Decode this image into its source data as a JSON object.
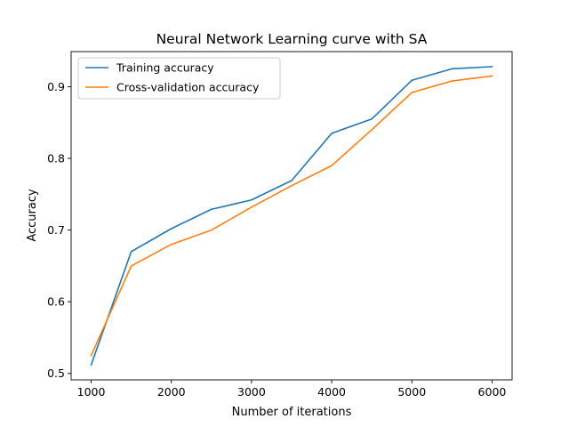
{
  "chart_data": {
    "type": "line",
    "title": "Neural Network Learning curve with SA",
    "xlabel": "Number of iterations",
    "ylabel": "Accuracy",
    "x": [
      1000,
      1500,
      2000,
      2500,
      3000,
      3500,
      4000,
      4500,
      5000,
      5500,
      6000
    ],
    "series": [
      {
        "name": "Training accuracy",
        "color": "#1f77b4",
        "values": [
          0.512,
          0.67,
          0.702,
          0.729,
          0.742,
          0.769,
          0.835,
          0.855,
          0.909,
          0.925,
          0.928
        ]
      },
      {
        "name": "Cross-validation accuracy",
        "color": "#ff7f0e",
        "values": [
          0.525,
          0.65,
          0.68,
          0.7,
          0.732,
          0.762,
          0.79,
          0.84,
          0.892,
          0.908,
          0.915
        ]
      }
    ],
    "xticks": [
      1000,
      2000,
      3000,
      4000,
      5000,
      6000
    ],
    "yticks": [
      0.5,
      0.6,
      0.7,
      0.8,
      0.9
    ],
    "xlim": [
      750,
      6250
    ],
    "ylim": [
      0.491,
      0.949
    ],
    "grid": false,
    "legend_position": "top-left"
  }
}
